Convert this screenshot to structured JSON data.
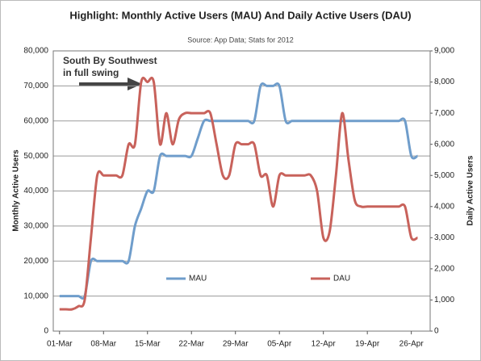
{
  "chart_data": {
    "type": "line",
    "title": "Highlight: Monthly Active Users (MAU) And Daily Active Users (DAU)",
    "subtitle": "Source: App Data; Stats for 2012",
    "y_label": "Monthly Active Users",
    "y2_label": "Daily Active Users",
    "annotations": [
      "South By Southwest",
      "in full swing"
    ],
    "categories": [
      "01-Mar",
      null,
      null,
      null,
      null,
      null,
      null,
      "08-Mar",
      null,
      null,
      null,
      null,
      null,
      null,
      "15-Mar",
      null,
      null,
      null,
      null,
      null,
      null,
      "22-Mar",
      null,
      null,
      null,
      null,
      null,
      null,
      "29-Mar",
      null,
      null,
      null,
      null,
      null,
      null,
      "05-Apr",
      null,
      null,
      null,
      null,
      null,
      null,
      "12-Apr",
      null,
      null,
      null,
      null,
      null,
      null,
      "19-Apr",
      null,
      null,
      null,
      null,
      null,
      null,
      "26-Apr",
      null
    ],
    "series": [
      {
        "name": "MAU",
        "color": "#6f9dcb",
        "axis": "y",
        "values": [
          10000,
          10000,
          10000,
          10000,
          10000,
          20000,
          20000,
          20000,
          20000,
          20000,
          20000,
          20000,
          30000,
          35000,
          40000,
          40000,
          50000,
          50000,
          50000,
          50000,
          50000,
          50000,
          55000,
          60000,
          60000,
          60000,
          60000,
          60000,
          60000,
          60000,
          60000,
          60000,
          70000,
          70000,
          70000,
          70000,
          60000,
          60000,
          60000,
          60000,
          60000,
          60000,
          60000,
          60000,
          60000,
          60000,
          60000,
          60000,
          60000,
          60000,
          60000,
          60000,
          60000,
          60000,
          60000,
          60000,
          50000,
          50000
        ]
      },
      {
        "name": "DAU",
        "color": "#c8625b",
        "axis": "y2",
        "values": [
          700,
          700,
          700,
          800,
          1000,
          3000,
          5000,
          5000,
          5000,
          5000,
          5000,
          6000,
          6000,
          8000,
          8000,
          8000,
          6000,
          7000,
          6000,
          6800,
          7000,
          7000,
          7000,
          7000,
          7000,
          6000,
          5000,
          5000,
          6000,
          6000,
          6000,
          6000,
          5000,
          5000,
          4000,
          5000,
          5000,
          5000,
          5000,
          5000,
          5000,
          4500,
          3000,
          3200,
          5000,
          7000,
          5500,
          4200,
          4000,
          4000,
          4000,
          4000,
          4000,
          4000,
          4000,
          4000,
          3000,
          3000
        ]
      }
    ],
    "ylim": [
      0,
      80000
    ],
    "yticks": [
      0,
      {
        "value": 10000,
        "label": "10,000"
      },
      {
        "value": 20000,
        "label": "20,000"
      },
      {
        "value": 30000,
        "label": "30,000"
      },
      {
        "value": 40000,
        "label": "40,000"
      },
      {
        "value": 50000,
        "label": "50,000"
      },
      {
        "value": 60000,
        "label": "60,000"
      },
      {
        "value": 70000,
        "label": "70,000"
      },
      {
        "value": 80000,
        "label": "80,000"
      }
    ],
    "y2lim": [
      0,
      9000
    ],
    "y2ticks": [
      0,
      {
        "value": 1000,
        "label": "1,000"
      },
      {
        "value": 2000,
        "label": "2,000"
      },
      {
        "value": 3000,
        "label": "3,000"
      },
      {
        "value": 4000,
        "label": "4,000"
      },
      {
        "value": 5000,
        "label": "5,000"
      },
      {
        "value": 6000,
        "label": "6,000"
      },
      {
        "value": 7000,
        "label": "7,000"
      },
      {
        "value": 8000,
        "label": "8,000"
      },
      {
        "value": 9000,
        "label": "9,000"
      }
    ],
    "grid": true
  }
}
